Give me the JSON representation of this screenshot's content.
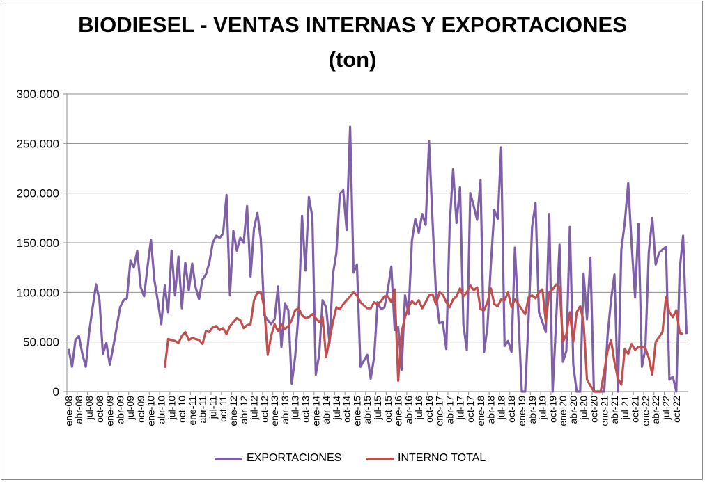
{
  "chart_data": {
    "type": "line",
    "title": "BIODIESEL - VENTAS INTERNAS Y EXPORTACIONES",
    "subtitle": "(ton)",
    "ylim": [
      0,
      300000
    ],
    "yticks": [
      "0",
      "50.000",
      "100.000",
      "150.000",
      "200.000",
      "250.000",
      "300.000"
    ],
    "xtick_labels": [
      "ene-08",
      "abr-08",
      "jul-08",
      "oct-08",
      "ene-09",
      "abr-09",
      "jul-09",
      "oct-09",
      "ene-10",
      "abr-10",
      "jul-10",
      "oct-10",
      "ene-11",
      "abr-11",
      "jul-11",
      "oct-11",
      "ene-12",
      "abr-12",
      "jul-12",
      "oct-12",
      "ene-13",
      "abr-13",
      "jul-13",
      "oct-13",
      "ene-14",
      "abr-14",
      "jul-14",
      "oct-14",
      "ene-15",
      "abr-15",
      "jul-15",
      "oct-15",
      "ene-16",
      "abr-16",
      "jul-16",
      "oct-16",
      "ene-17",
      "abr-17",
      "jul-17",
      "oct-17",
      "ene-18",
      "abr-18",
      "jul-18",
      "oct-18",
      "ene-19",
      "abr-19",
      "jul-19",
      "oct-19",
      "ene-20",
      "abr-20",
      "jul-20",
      "oct-20",
      "ene-21",
      "abr-21",
      "jul-21",
      "oct-21",
      "ene-22",
      "abr-22",
      "jul-22",
      "oct-22"
    ],
    "grid": true,
    "legend_position": "bottom",
    "series": [
      {
        "name": "EXPORTACIONES",
        "color": "#7f5fa8",
        "values": [
          43000,
          25000,
          52000,
          56000,
          38000,
          25000,
          60000,
          85000,
          108000,
          92000,
          38000,
          49000,
          27000,
          45000,
          65000,
          85000,
          92000,
          94000,
          132000,
          125000,
          142000,
          105000,
          96000,
          126000,
          153000,
          112000,
          91000,
          68000,
          107000,
          80000,
          142000,
          97000,
          136000,
          84000,
          130000,
          102000,
          129000,
          105000,
          93000,
          113000,
          118000,
          130000,
          150000,
          157000,
          155000,
          159000,
          198000,
          97000,
          162000,
          142000,
          155000,
          150000,
          187000,
          116000,
          164000,
          180000,
          154000,
          77000,
          72000,
          68000,
          73000,
          106000,
          45000,
          89000,
          82000,
          8000,
          35000,
          80000,
          177000,
          122000,
          196000,
          176000,
          17000,
          37000,
          92000,
          85000,
          49000,
          118000,
          140000,
          199000,
          203000,
          163000,
          267000,
          120000,
          128000,
          25000,
          31000,
          37000,
          13000,
          35000,
          90000,
          83000,
          85000,
          103000,
          126000,
          62000,
          65000,
          22000,
          97000,
          78000,
          152000,
          174000,
          160000,
          179000,
          168000,
          252000,
          172000,
          99000,
          69000,
          70000,
          43000,
          168000,
          224000,
          170000,
          206000,
          67000,
          42000,
          200000,
          187000,
          173000,
          213000,
          40000,
          65000,
          128000,
          183000,
          174000,
          246000,
          46000,
          51000,
          40000,
          145000,
          76000,
          0,
          0,
          74000,
          166000,
          190000,
          80000,
          70000,
          60000,
          179000,
          0,
          71000,
          148000,
          30000,
          41000,
          166000,
          27000,
          0,
          0,
          119000,
          73000,
          135000,
          0,
          0,
          0,
          0,
          57000,
          92000,
          118000,
          0,
          143000,
          170000,
          210000,
          148000,
          95000,
          169000,
          25000,
          43000,
          140000,
          175000,
          128000,
          140000,
          143000,
          146000,
          12000,
          15000,
          0,
          123000,
          157000,
          58000
        ]
      },
      {
        "name": "INTERNO TOTAL",
        "color": "#c0504d",
        "values": [
          null,
          null,
          null,
          null,
          null,
          null,
          null,
          null,
          null,
          null,
          null,
          null,
          null,
          null,
          null,
          null,
          null,
          null,
          null,
          null,
          null,
          null,
          null,
          null,
          null,
          null,
          null,
          null,
          24000,
          53000,
          52000,
          51000,
          49000,
          56000,
          60000,
          52000,
          54000,
          53000,
          52000,
          48000,
          61000,
          60000,
          65000,
          66000,
          62000,
          64000,
          58000,
          66000,
          70000,
          74000,
          72000,
          64000,
          67000,
          68000,
          92000,
          100000,
          100000,
          85000,
          37000,
          56000,
          68000,
          61000,
          68000,
          63000,
          66000,
          72000,
          82000,
          84000,
          77000,
          74000,
          75000,
          78000,
          74000,
          70000,
          75000,
          35000,
          52000,
          70000,
          85000,
          83000,
          88000,
          92000,
          96000,
          100000,
          97000,
          90000,
          87000,
          84000,
          84000,
          90000,
          88000,
          91000,
          96000,
          96000,
          90000,
          103000,
          11000,
          60000,
          75000,
          85000,
          91000,
          88000,
          92000,
          84000,
          90000,
          97000,
          98000,
          88000,
          100000,
          98000,
          90000,
          85000,
          93000,
          96000,
          104000,
          96000,
          100000,
          107000,
          102000,
          105000,
          83000,
          82000,
          90000,
          104000,
          88000,
          86000,
          93000,
          92000,
          100000,
          85000,
          93000,
          88000,
          83000,
          78000,
          95000,
          97000,
          94000,
          100000,
          103000,
          70000,
          100000,
          103000,
          108000,
          105000,
          50000,
          58000,
          80000,
          50000,
          80000,
          86000,
          70000,
          12000,
          6000,
          0,
          0,
          0,
          20000,
          41000,
          52000,
          30000,
          13000,
          7000,
          43000,
          38000,
          48000,
          42000,
          45000,
          45000,
          44000,
          34000,
          17000,
          50000,
          55000,
          60000,
          95000,
          80000,
          75000,
          82000,
          59000,
          58000
        ]
      }
    ]
  }
}
